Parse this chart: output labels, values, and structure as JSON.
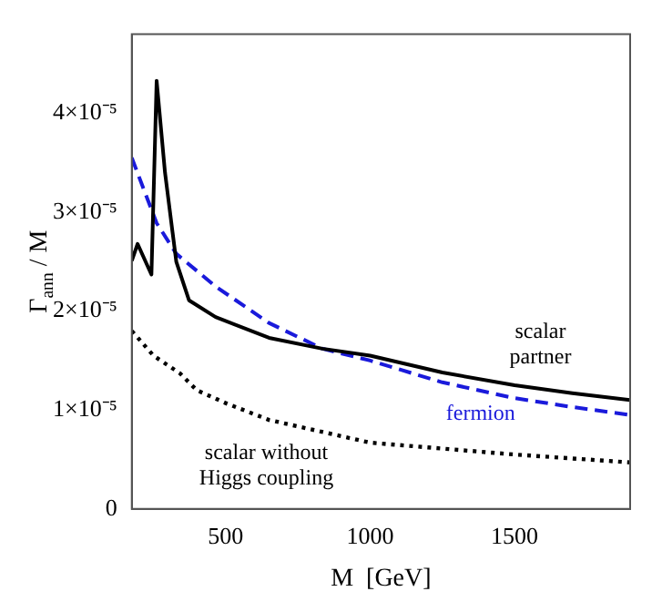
{
  "chart_data": {
    "type": "line",
    "xlabel": "M  [GeV]",
    "ylabel": "Γ$_{ann}$ / M",
    "xlim": [
      175,
      1900
    ],
    "ylim": [
      0,
      4.8e-05
    ],
    "xticks": [
      500,
      1000,
      1500
    ],
    "yticks": [
      0,
      {
        "value": 1e-05,
        "label": "1×10⁻⁵"
      },
      {
        "value": 2e-05,
        "label": "2×10⁻⁵"
      },
      {
        "value": 3e-05,
        "label": "3×10⁻⁵"
      },
      {
        "value": 4e-05,
        "label": "4×10⁻⁵"
      }
    ],
    "grid": false,
    "legend": false,
    "marker": "none",
    "series": [
      {
        "name": "scalar\npartner",
        "color": "#000000",
        "line_style": "solid",
        "x": [
          175,
          195,
          243,
          261,
          290,
          329,
          373,
          465,
          650,
          835,
          1000,
          1250,
          1500,
          1700,
          1900
        ],
        "values": [
          2.51e-05,
          2.68e-05,
          2.37e-05,
          4.33e-05,
          3.4e-05,
          2.5e-05,
          2.11e-05,
          1.94e-05,
          1.73e-05,
          1.62e-05,
          1.55e-05,
          1.38e-05,
          1.25e-05,
          1.17e-05,
          1.1e-05
        ]
      },
      {
        "name": "fermion",
        "color": "#1a1adb",
        "line_style": "dashed",
        "x": [
          175,
          261,
          329,
          465,
          650,
          835,
          1000,
          1250,
          1500,
          1700,
          1900
        ],
        "values": [
          3.55e-05,
          2.89e-05,
          2.58e-05,
          2.25e-05,
          1.88e-05,
          1.62e-05,
          1.5e-05,
          1.28e-05,
          1.12e-05,
          1.03e-05,
          9.5e-06
        ]
      },
      {
        "name": "scalar without\nHiggs coupling",
        "color": "#000000",
        "line_style": "dotted",
        "x": [
          175,
          250,
          342,
          400,
          500,
          650,
          1000,
          1500,
          1900
        ],
        "values": [
          1.8e-05,
          1.55e-05,
          1.37e-05,
          1.2e-05,
          1.07e-05,
          9e-06,
          6.7e-06,
          5.5e-06,
          4.7e-06
        ]
      }
    ]
  }
}
